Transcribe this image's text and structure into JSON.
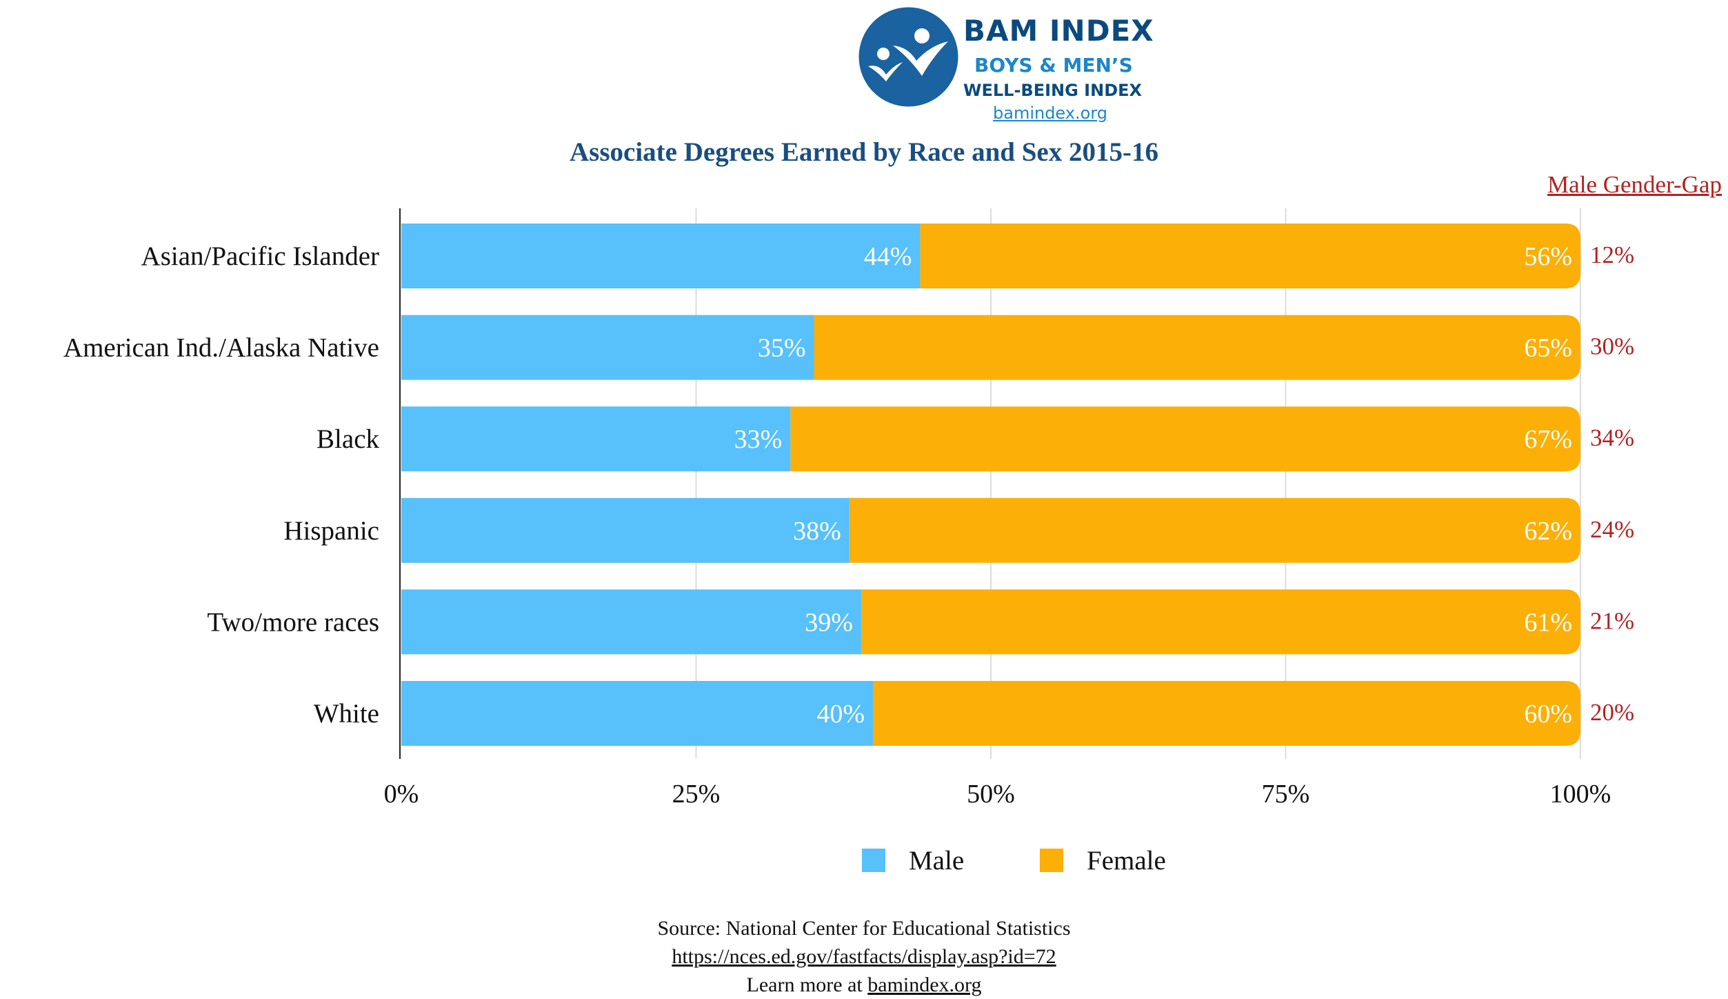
{
  "logo": {
    "line1": "BAM INDEX",
    "line2": "BOYS & MEN’S",
    "line3": "WELL-BEING INDEX",
    "line4": "bamindex.org",
    "circle_color": "#1b62a0"
  },
  "gap_header": "Male Gender-Gap",
  "legend": {
    "male": "Male",
    "female": "Female"
  },
  "footer": {
    "source": "Source: National Center for Educational Statistics",
    "url": "https://nces.ed.gov/fastfacts/display.asp?id=72",
    "learn_prefix": "Learn more at ",
    "learn_link": "bamindex.org"
  },
  "colors": {
    "male": "#58c0fb",
    "female": "#fcaf06",
    "gap": "#b22222",
    "title": "#1a4e80"
  },
  "chart_data": {
    "type": "bar",
    "stacked": true,
    "orientation": "horizontal",
    "title": "Associate Degrees Earned by Race and Sex 2015-16",
    "categories": [
      "Asian/Pacific Islander",
      "American Ind./Alaska Native",
      "Black",
      "Hispanic",
      "Two/more races",
      "White"
    ],
    "series": [
      {
        "name": "Male",
        "values": [
          44,
          35,
          33,
          38,
          39,
          40
        ]
      },
      {
        "name": "Female",
        "values": [
          56,
          65,
          67,
          62,
          61,
          60
        ]
      }
    ],
    "value_labels": {
      "male": [
        "44%",
        "35%",
        "33%",
        "38%",
        "39%",
        "40%"
      ],
      "female": [
        "56%",
        "65%",
        "67%",
        "62%",
        "61%",
        "60%"
      ]
    },
    "gender_gap": [
      "12%",
      "30%",
      "34%",
      "24%",
      "21%",
      "20%"
    ],
    "xlim": [
      0,
      100
    ],
    "xticks": [
      0,
      25,
      50,
      75,
      100
    ],
    "xtick_labels": [
      "0%",
      "25%",
      "50%",
      "75%",
      "100%"
    ],
    "grid": true,
    "legend_position": "bottom"
  }
}
